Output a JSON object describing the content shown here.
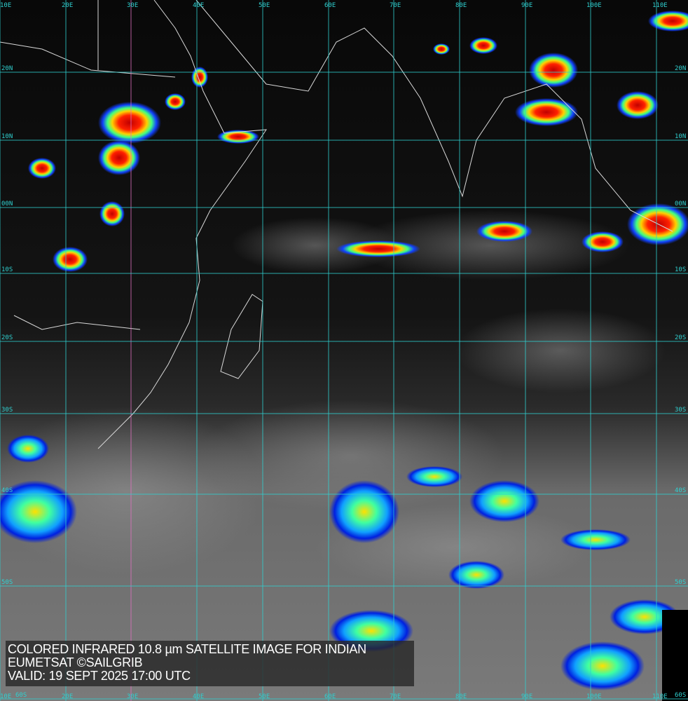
{
  "caption": {
    "line1": "COLORED INFRARED 10.8 µm SATELLITE IMAGE FOR INDIAN",
    "line2": "EUMETSAT ©SAILGRIB",
    "line3": "VALID:  19 SEPT 2025 17:00 UTC"
  },
  "grid": {
    "longitudes": [
      "10E",
      "20E",
      "30E",
      "40E",
      "50E",
      "60E",
      "70E",
      "80E",
      "90E",
      "100E",
      "110E"
    ],
    "latitudes": [
      "20N",
      "10N",
      "00N",
      "10S",
      "20S",
      "30S",
      "40S",
      "50S",
      "60S"
    ]
  },
  "colors": {
    "grid": "#2fd0d0",
    "meridian_30E": "#e070c0",
    "coast": "#d8d8d8",
    "cold_top": "#d00000",
    "cloud_blue": "#1030ff"
  }
}
